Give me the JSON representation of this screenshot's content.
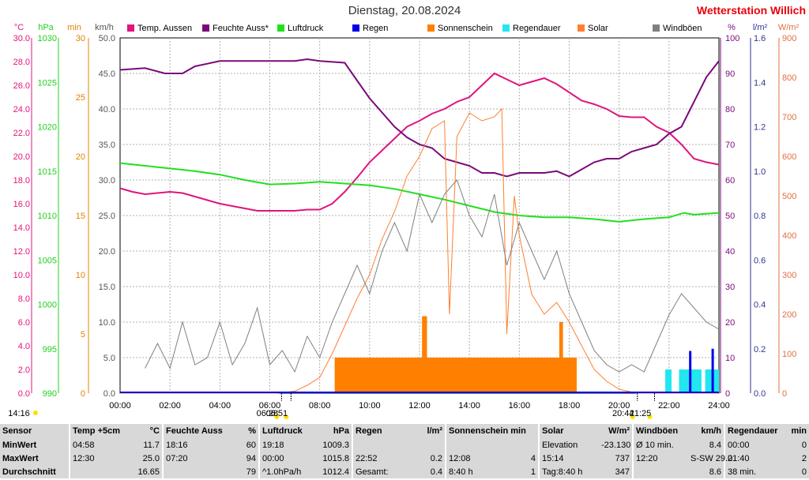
{
  "header": {
    "title": "Dienstag, 20.08.2024",
    "brand": "Wetterstation Willich"
  },
  "legend": [
    {
      "label": "Temp. Aussen",
      "color": "#e0147d"
    },
    {
      "label": "Feuchte Auss*",
      "color": "#7a0a7a"
    },
    {
      "label": "Luftdruck",
      "color": "#20e020"
    },
    {
      "label": "Regen",
      "color": "#0000e6"
    },
    {
      "label": "Sonnenschein",
      "color": "#ff8000"
    },
    {
      "label": "Regendauer",
      "color": "#22e6f0"
    },
    {
      "label": "Solar",
      "color": "#ff7f30"
    },
    {
      "label": "Windböen",
      "color": "#808080"
    }
  ],
  "chart_data": {
    "type": "line",
    "xlim": [
      0,
      24
    ],
    "x_ticks": [
      "00:00",
      "02:00",
      "04:00",
      "06:00",
      "08:00",
      "10:00",
      "12:00",
      "14:00",
      "16:00",
      "18:00",
      "20:00",
      "22:00",
      "24:00"
    ],
    "axes": {
      "temp": {
        "unit": "°C",
        "color": "#e0147d",
        "min": 0,
        "max": 30,
        "step": 2,
        "labels": [
          "0.0",
          "2.0",
          "4.0",
          "6.0",
          "8.0",
          "10.0",
          "12.0",
          "14.0",
          "16.0",
          "18.0",
          "20.0",
          "22.0",
          "24.0",
          "26.0",
          "28.0",
          "30.0"
        ]
      },
      "pressure": {
        "unit": "hPa",
        "color": "#20d020",
        "min": 990,
        "max": 1030,
        "step": 5,
        "labels": [
          "990",
          "995",
          "1000",
          "1005",
          "1010",
          "1015",
          "1020",
          "1025",
          "1030"
        ]
      },
      "minutes": {
        "unit": "min",
        "color": "#e08000",
        "min": 0,
        "max": 30,
        "step": 5,
        "labels": [
          "0",
          "5",
          "10",
          "15",
          "20",
          "25",
          "30"
        ]
      },
      "wind": {
        "unit": "km/h",
        "color": "#555555",
        "min": 0,
        "max": 50,
        "step": 5,
        "labels": [
          "0.0",
          "5.0",
          "10.0",
          "15.0",
          "20.0",
          "25.0",
          "30.0",
          "35.0",
          "40.0",
          "45.0",
          "50.0"
        ]
      },
      "humidity": {
        "unit": "%",
        "color": "#7a0a7a",
        "min": 0,
        "max": 100,
        "step": 10,
        "labels": [
          "0",
          "10",
          "20",
          "30",
          "40",
          "50",
          "60",
          "70",
          "80",
          "90",
          "100"
        ]
      },
      "rain": {
        "unit": "l/m²",
        "color": "#333399",
        "min": 0,
        "max": 1.6,
        "step": 0.2,
        "labels": [
          "0.0",
          "0.2",
          "0.4",
          "0.6",
          "0.8",
          "1.0",
          "1.2",
          "1.4",
          "1.6"
        ]
      },
      "solar": {
        "unit": "W/m²",
        "color": "#e07040",
        "min": 0,
        "max": 900,
        "step": 100,
        "labels": [
          "0",
          "100",
          "200",
          "300",
          "400",
          "500",
          "600",
          "700",
          "800",
          "900"
        ]
      }
    },
    "series": [
      {
        "name": "Temp. Aussen",
        "axis": "temp",
        "color": "#e0147d",
        "points": [
          [
            0,
            17.3
          ],
          [
            0.5,
            17.0
          ],
          [
            1,
            16.8
          ],
          [
            1.5,
            16.9
          ],
          [
            2,
            17.0
          ],
          [
            2.5,
            16.9
          ],
          [
            3,
            16.6
          ],
          [
            3.5,
            16.3
          ],
          [
            4,
            16.0
          ],
          [
            4.5,
            15.8
          ],
          [
            5,
            15.6
          ],
          [
            5.5,
            15.4
          ],
          [
            6,
            15.4
          ],
          [
            6.5,
            15.4
          ],
          [
            7,
            15.4
          ],
          [
            7.5,
            15.5
          ],
          [
            8,
            15.5
          ],
          [
            8.5,
            16.0
          ],
          [
            9,
            17.0
          ],
          [
            9.5,
            18.2
          ],
          [
            10,
            19.5
          ],
          [
            10.5,
            20.5
          ],
          [
            11,
            21.5
          ],
          [
            11.5,
            22.5
          ],
          [
            12,
            23.0
          ],
          [
            12.5,
            23.6
          ],
          [
            13,
            24.0
          ],
          [
            13.5,
            24.6
          ],
          [
            14,
            25.0
          ],
          [
            14.5,
            26.0
          ],
          [
            15,
            27.0
          ],
          [
            15.5,
            26.5
          ],
          [
            16,
            26.0
          ],
          [
            16.5,
            26.3
          ],
          [
            17,
            26.6
          ],
          [
            17.5,
            26.1
          ],
          [
            18,
            25.4
          ],
          [
            18.5,
            24.7
          ],
          [
            19,
            24.4
          ],
          [
            19.5,
            24.0
          ],
          [
            20,
            23.4
          ],
          [
            20.5,
            23.3
          ],
          [
            21,
            23.3
          ],
          [
            21.5,
            22.5
          ],
          [
            22,
            22.0
          ],
          [
            22.5,
            21.0
          ],
          [
            23,
            19.8
          ],
          [
            23.5,
            19.5
          ],
          [
            24,
            19.3
          ]
        ]
      },
      {
        "name": "Feuchte Auss*",
        "axis": "humidity",
        "color": "#7a0a7a",
        "points": [
          [
            0,
            91
          ],
          [
            1,
            91.5
          ],
          [
            1.8,
            90
          ],
          [
            2.5,
            90
          ],
          [
            3,
            92
          ],
          [
            4,
            93.5
          ],
          [
            5,
            93.5
          ],
          [
            6,
            93.5
          ],
          [
            7,
            93.5
          ],
          [
            7.5,
            94
          ],
          [
            8,
            93.5
          ],
          [
            9,
            93
          ],
          [
            9.5,
            88
          ],
          [
            10,
            83
          ],
          [
            10.5,
            79
          ],
          [
            11,
            75
          ],
          [
            11.5,
            72
          ],
          [
            12,
            70
          ],
          [
            12.5,
            69
          ],
          [
            13,
            66
          ],
          [
            13.5,
            65
          ],
          [
            14,
            64
          ],
          [
            14.5,
            62
          ],
          [
            15,
            62
          ],
          [
            15.5,
            61
          ],
          [
            16,
            62
          ],
          [
            16.5,
            62
          ],
          [
            17,
            62
          ],
          [
            17.5,
            62.5
          ],
          [
            18,
            61
          ],
          [
            18.5,
            63
          ],
          [
            19,
            65
          ],
          [
            19.5,
            66
          ],
          [
            20,
            66
          ],
          [
            20.5,
            68
          ],
          [
            21,
            69
          ],
          [
            21.5,
            70
          ],
          [
            22,
            73
          ],
          [
            22.5,
            75
          ],
          [
            23,
            82
          ],
          [
            23.5,
            89
          ],
          [
            24,
            93.5
          ]
        ]
      },
      {
        "name": "Luftdruck",
        "axis": "pressure",
        "color": "#20e020",
        "points": [
          [
            0,
            1015.9
          ],
          [
            1,
            1015.6
          ],
          [
            2,
            1015.3
          ],
          [
            3,
            1015.0
          ],
          [
            4,
            1014.6
          ],
          [
            5,
            1014.0
          ],
          [
            6,
            1013.5
          ],
          [
            7,
            1013.6
          ],
          [
            8,
            1013.8
          ],
          [
            9,
            1013.6
          ],
          [
            10,
            1013.4
          ],
          [
            11,
            1013.0
          ],
          [
            12,
            1012.4
          ],
          [
            13,
            1011.8
          ],
          [
            14,
            1011.1
          ],
          [
            15,
            1010.4
          ],
          [
            16,
            1010.0
          ],
          [
            17,
            1009.8
          ],
          [
            18,
            1009.8
          ],
          [
            19,
            1009.6
          ],
          [
            20,
            1009.3
          ],
          [
            21,
            1009.6
          ],
          [
            22,
            1009.8
          ],
          [
            22.6,
            1010.3
          ],
          [
            23,
            1010.1
          ],
          [
            24,
            1010.3
          ]
        ]
      },
      {
        "name": "Solar",
        "axis": "solar",
        "color": "#ff7f30",
        "points": [
          [
            0,
            0
          ],
          [
            6.3,
            0
          ],
          [
            7,
            5
          ],
          [
            7.5,
            20
          ],
          [
            8,
            40
          ],
          [
            8.5,
            100
          ],
          [
            9,
            170
          ],
          [
            9.5,
            240
          ],
          [
            10,
            300
          ],
          [
            10.5,
            390
          ],
          [
            11,
            460
          ],
          [
            11.5,
            550
          ],
          [
            12,
            600
          ],
          [
            12.5,
            670
          ],
          [
            13,
            690
          ],
          [
            13.2,
            200
          ],
          [
            13.5,
            650
          ],
          [
            14,
            710
          ],
          [
            14.5,
            690
          ],
          [
            15,
            700
          ],
          [
            15.3,
            720
          ],
          [
            15.5,
            150
          ],
          [
            15.8,
            500
          ],
          [
            16,
            400
          ],
          [
            16.5,
            250
          ],
          [
            17,
            200
          ],
          [
            17.5,
            230
          ],
          [
            18,
            180
          ],
          [
            18.5,
            120
          ],
          [
            19,
            60
          ],
          [
            19.5,
            30
          ],
          [
            20,
            10
          ],
          [
            20.7,
            0
          ],
          [
            24,
            0
          ]
        ]
      },
      {
        "name": "Windböen",
        "axis": "wind",
        "color": "#808080",
        "points": [
          [
            1,
            3.5
          ],
          [
            1.5,
            7
          ],
          [
            2,
            3.5
          ],
          [
            2.5,
            10
          ],
          [
            3,
            4
          ],
          [
            3.5,
            5
          ],
          [
            4,
            10
          ],
          [
            4.5,
            4
          ],
          [
            5,
            7
          ],
          [
            5.5,
            12
          ],
          [
            6,
            4
          ],
          [
            6.5,
            6
          ],
          [
            7,
            3
          ],
          [
            7.5,
            8
          ],
          [
            8,
            5
          ],
          [
            8.5,
            10
          ],
          [
            9,
            14
          ],
          [
            9.5,
            18
          ],
          [
            10,
            14
          ],
          [
            10.5,
            20
          ],
          [
            11,
            24
          ],
          [
            11.5,
            20
          ],
          [
            12,
            28
          ],
          [
            12.5,
            24
          ],
          [
            13,
            28
          ],
          [
            13.5,
            30
          ],
          [
            14,
            25
          ],
          [
            14.5,
            22
          ],
          [
            15,
            28
          ],
          [
            15.5,
            18
          ],
          [
            16,
            24
          ],
          [
            16.5,
            20
          ],
          [
            17,
            16
          ],
          [
            17.5,
            20
          ],
          [
            18,
            14
          ],
          [
            18.5,
            10
          ],
          [
            19,
            6
          ],
          [
            19.5,
            4
          ],
          [
            20,
            3
          ],
          [
            20.5,
            4
          ],
          [
            21,
            3
          ],
          [
            21.5,
            7
          ],
          [
            22,
            11
          ],
          [
            22.5,
            14
          ],
          [
            23,
            12
          ],
          [
            23.5,
            10
          ],
          [
            24,
            9
          ]
        ]
      }
    ],
    "sunshine_min": [
      [
        8.6,
        18.3,
        3
      ],
      [
        12.1,
        12.3,
        6.5
      ],
      [
        17.6,
        17.75,
        6
      ]
    ],
    "rain_duration_min": [
      [
        21.85,
        22.1,
        2
      ],
      [
        22.4,
        23.3,
        2
      ],
      [
        23.45,
        24,
        2
      ]
    ],
    "rain_lm2": [
      [
        22.85,
        0.19
      ],
      [
        23.75,
        0.2
      ]
    ],
    "markers": [
      {
        "hour": 6.47,
        "label": "06:28"
      },
      {
        "hour": 6.85,
        "label": "06:51"
      },
      {
        "hour": 20.73,
        "label": "20:44"
      },
      {
        "hour": 21.42,
        "label": "21:25"
      }
    ],
    "corner_time": "14:16",
    "grid": true
  },
  "stats": {
    "row_labels": [
      "Sensor",
      "MinWert",
      "MaxWert",
      "Durchschnitt"
    ],
    "columns": [
      {
        "title": "Temp +5cm",
        "unit": "°C",
        "min": [
          "04:58",
          "11.7"
        ],
        "max": [
          "12:30",
          "25.0"
        ],
        "avg": [
          "",
          "16.65"
        ]
      },
      {
        "title": "Feuchte Auss",
        "unit": "%",
        "min": [
          "18:16",
          "60"
        ],
        "max": [
          "07:20",
          "94"
        ],
        "avg": [
          "",
          "79"
        ]
      },
      {
        "title": "Luftdruck",
        "unit": "hPa",
        "min": [
          "19:18",
          "1009.3"
        ],
        "max": [
          "00:00",
          "1015.8"
        ],
        "avg": [
          "^1.0hPa/h",
          "1012.4"
        ]
      },
      {
        "title": "Regen",
        "unit": "l/m²",
        "min": [
          "",
          ""
        ],
        "max": [
          "22:52",
          "0.2"
        ],
        "avg": [
          "Gesamt:",
          "0.4"
        ]
      },
      {
        "title": "Sonnenschein min",
        "unit": "",
        "min": [
          "",
          ""
        ],
        "max": [
          "12:08",
          "4"
        ],
        "avg": [
          "8:40 h",
          "1"
        ]
      },
      {
        "title": "Solar",
        "unit": "W/m²",
        "min": [
          "Elevation",
          "-23.130"
        ],
        "max": [
          "15:14",
          "737"
        ],
        "avg": [
          "Tag:8:40 h",
          "347"
        ]
      },
      {
        "title": "Windböen",
        "unit": "km/h",
        "min": [
          "Ø 10 min.",
          "8.4"
        ],
        "max": [
          "12:20",
          "S-SW 29.0"
        ],
        "avg": [
          "",
          "8.6"
        ]
      },
      {
        "title": "Regendauer",
        "unit": "min",
        "min": [
          "00:00",
          "0"
        ],
        "max": [
          "21:40",
          "2"
        ],
        "avg": [
          "38 min.",
          "0"
        ]
      }
    ]
  }
}
